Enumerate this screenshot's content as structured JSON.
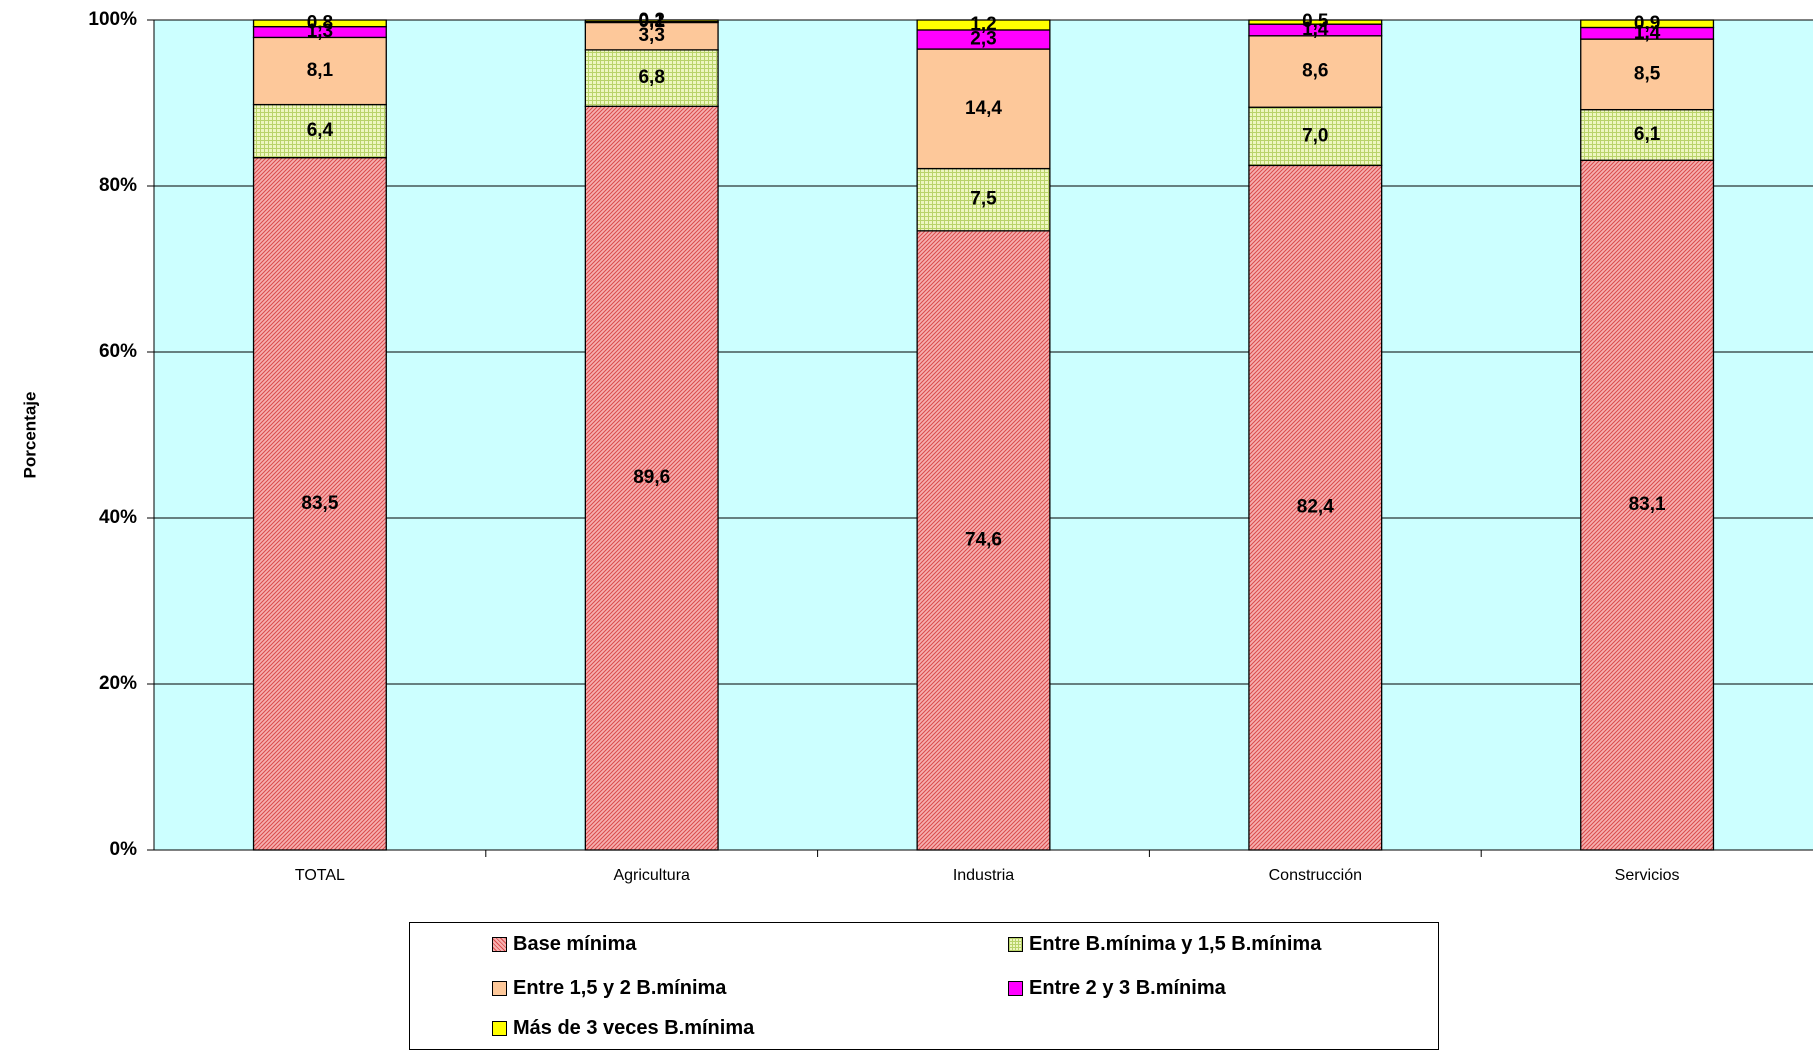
{
  "chart_data": {
    "type": "bar",
    "stacked": true,
    "percent_stacked": true,
    "categories": [
      "TOTAL",
      "Agricultura",
      "Industria",
      "Construcción",
      "Servicios"
    ],
    "series": [
      {
        "name": "Base mínima",
        "color": "#f4a0a0",
        "pattern": "diagonal-red",
        "values": [
          83.5,
          89.6,
          74.6,
          82.4,
          83.1
        ],
        "labels": [
          "83,5",
          "89,6",
          "74,6",
          "82,4",
          "83,1"
        ]
      },
      {
        "name": "Entre B.mínima y 1,5 B.mínima",
        "color": "#e6f2b0",
        "pattern": "green-grid",
        "values": [
          6.4,
          6.8,
          7.5,
          7.0,
          6.1
        ],
        "labels": [
          "6,4",
          "6,8",
          "7,5",
          "7,0",
          "6,1"
        ]
      },
      {
        "name": "Entre 1,5 y 2 B.mínima",
        "color": "#fdc89a",
        "pattern": "solid",
        "values": [
          8.1,
          3.3,
          14.4,
          8.6,
          8.5
        ],
        "labels": [
          "8,1",
          "3,3",
          "14,4",
          "8,6",
          "8,5"
        ]
      },
      {
        "name": "Entre 2 y 3 B.mínima",
        "color": "#ff00ff",
        "pattern": "solid",
        "values": [
          1.3,
          0.1,
          2.3,
          1.4,
          1.4
        ],
        "labels": [
          "1,3",
          "0,1",
          "2,3",
          "1,4",
          "1,4"
        ]
      },
      {
        "name": "Más de 3 veces B.mínima",
        "color": "#ffff00",
        "pattern": "solid",
        "values": [
          0.8,
          0.2,
          1.2,
          0.5,
          0.9
        ],
        "labels": [
          "0,8",
          "0,2",
          "1,2",
          "0,5",
          "0,9"
        ]
      }
    ],
    "title": "",
    "xlabel": "",
    "ylabel": "Porcentaje",
    "ylim": [
      0,
      100
    ],
    "yticks": [
      "0%",
      "20%",
      "40%",
      "60%",
      "80%",
      "100%"
    ],
    "grid": true,
    "plot_background": "#ccffff",
    "legend_position": "bottom"
  }
}
